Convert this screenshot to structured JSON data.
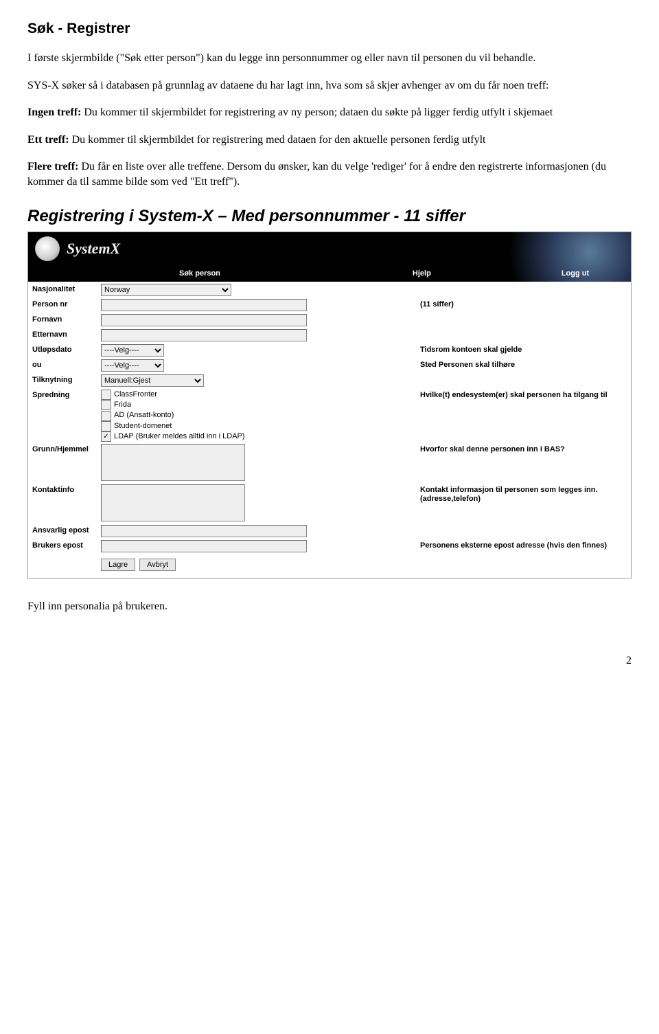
{
  "heading1": "Søk - Registrer",
  "para1": "I første skjermbilde (\"Søk etter person\") kan du legge inn personnummer og eller navn til personen du vil behandle.",
  "para2": "SYS-X søker så i databasen på grunnlag av dataene du har lagt inn, hva som så skjer avhenger av om du får noen treff:",
  "para3_bold": "Ingen treff:",
  "para3_rest": " Du kommer til skjermbildet for registrering av ny person; dataen du søkte på ligger ferdig utfylt i skjemaet",
  "para4_bold": "Ett treff:",
  "para4_rest": " Du kommer til skjermbildet for registrering med dataen for den aktuelle personen ferdig utfylt",
  "para5_bold": "Flere treff:",
  "para5_rest": " Du får en liste over alle treffene. Dersom du ønsker, kan du velge 'rediger' for å endre den registrerte informasjonen (du kommer da til samme bilde som ved \"Ett treff\").",
  "heading2": "Registrering i System-X – Med personnummer - 11 siffer",
  "screenshot": {
    "logo_text": "SystemX",
    "nav": {
      "item1": "Søk person",
      "item2": "Hjelp",
      "item3": "Logg ut"
    },
    "labels": {
      "nasjonalitet": "Nasjonalitet",
      "personnr": "Person nr",
      "fornavn": "Fornavn",
      "etternavn": "Etternavn",
      "utlopsdato": "Utløpsdato",
      "ou": "ou",
      "tilknytning": "Tilknytning",
      "spredning": "Spredning",
      "grunn": "Grunn/Hjemmel",
      "kontaktinfo": "Kontaktinfo",
      "ansvarlig": "Ansvarlig epost",
      "brukers": "Brukers epost"
    },
    "values": {
      "nasjonalitet": "Norway",
      "velg": "----Velg----",
      "tilknytning": "Manuell:Gjest"
    },
    "hints": {
      "personnr": "(11 siffer)",
      "utlopsdato": "Tidsrom kontoen skal gjelde",
      "ou": "Sted Personen skal tilhøre",
      "spredning": "Hvilke(t) endesystem(er) skal personen ha tilgang til",
      "grunn": "Hvorfor skal denne personen inn i BAS?",
      "kontaktinfo": "Kontakt informasjon til personen som legges inn. (adresse,telefon)",
      "brukers": "Personens eksterne epost adresse (hvis den finnes)"
    },
    "checks": {
      "c1": "ClassFronter",
      "c2": "Frida",
      "c3": "AD (Ansatt-konto)",
      "c4": "Student-domenet",
      "c5": "LDAP (Bruker meldes alltid inn i LDAP)"
    },
    "buttons": {
      "save": "Lagre",
      "cancel": "Avbryt"
    }
  },
  "footer": "Fyll inn personalia på brukeren.",
  "pagenum": "2"
}
